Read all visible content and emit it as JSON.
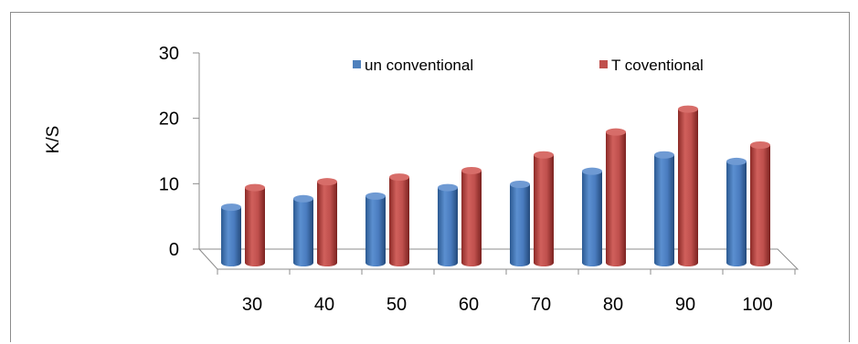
{
  "chart_data": {
    "type": "bar",
    "style": "3d-cylinder",
    "title": "",
    "xlabel": "",
    "ylabel": "K/S",
    "categories": [
      "30",
      "40",
      "50",
      "60",
      "70",
      "80",
      "90",
      "100"
    ],
    "ylim": [
      0,
      30
    ],
    "yticks": [
      "0",
      "10",
      "20",
      "30"
    ],
    "grid": false,
    "legend_position": "top",
    "series": [
      {
        "name": "un conventional",
        "color": "#4f81bd",
        "values": [
          8.5,
          9.8,
          10.2,
          11.5,
          12,
          14,
          16.5,
          15.5
        ]
      },
      {
        "name": "T coventional",
        "color": "#c0504d",
        "values": [
          11.5,
          12.4,
          13.1,
          14.1,
          16.5,
          20,
          23.5,
          18
        ]
      }
    ]
  }
}
